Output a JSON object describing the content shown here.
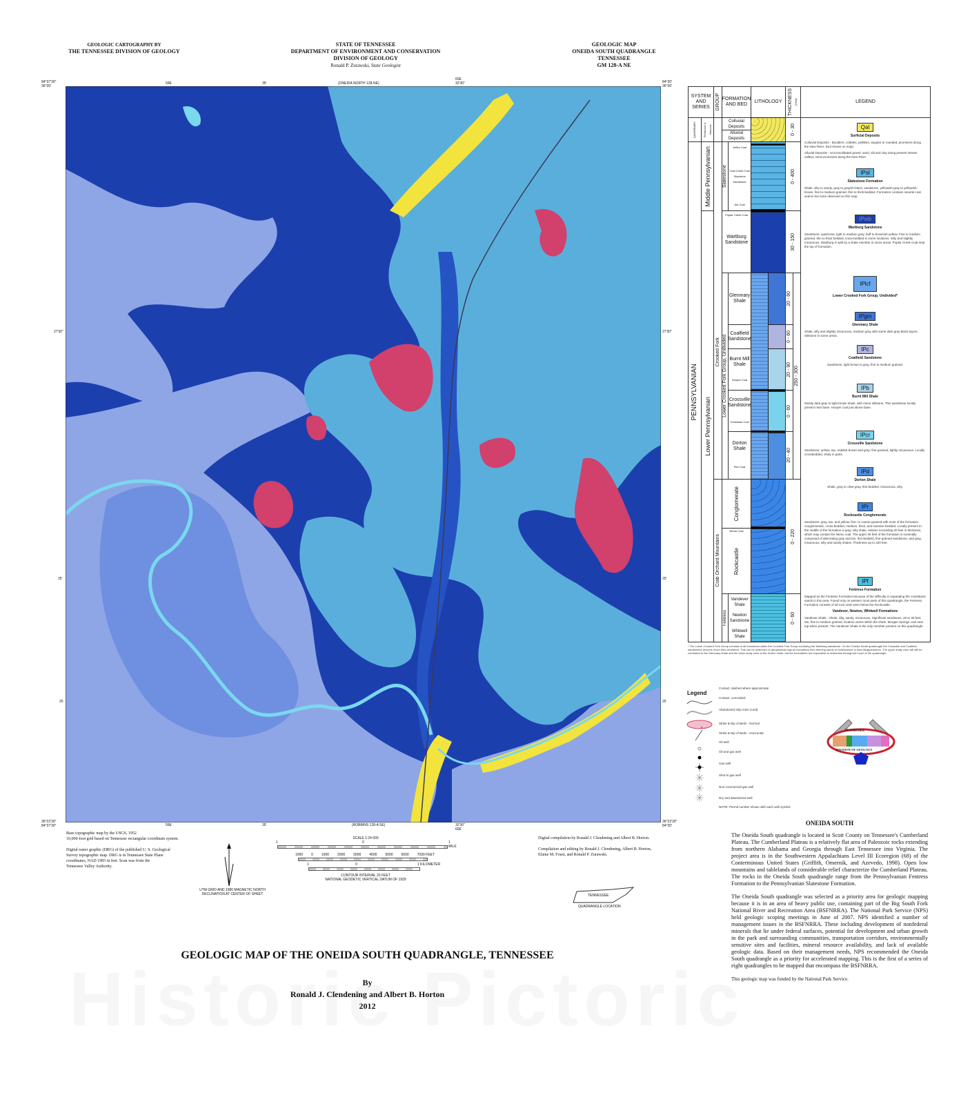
{
  "header": {
    "left": [
      "GEOLOGIC CARTOGRAPHY BY",
      "THE TENNESSEE DIVISION OF GEOLOGY"
    ],
    "center": [
      "STATE OF TENNESSEE",
      "DEPARTMENT OF ENVIRONMENT AND CONSERVATION",
      "DIVISION OF GEOLOGY"
    ],
    "center_geologist_name": "Ronald P. Zurawski,",
    "center_geologist_title": "State Geologist",
    "right": [
      "GEOLOGIC MAP",
      "ONEIDA SOUTH QUADRANGLE",
      "TENNESSEE",
      "GM 128-A NE"
    ]
  },
  "map": {
    "corner_nw": "84°37'30\"\n36°30'",
    "corner_ne": "84°30'\n36°30'",
    "corner_sw": "36°22'30\"\n84°37'30\"",
    "corner_se": "36°22'30\"\n84°30'",
    "top_labels": [
      "59E",
      "35'",
      "(ONEIDA NORTH 128-NE)",
      "60E 32'30\""
    ],
    "bottom_labels": [
      "59E",
      "35'",
      "(ROBBINS 128-A SE)",
      "32'30\" 60E"
    ],
    "side_labels": [
      "27'30\"",
      "25'",
      "25"
    ],
    "colors": {
      "wartburg": "#1c3fae",
      "slatestone": "#5aaedc",
      "fentress": "#8ea6e6",
      "crooked_fork": "#3f6fd0",
      "coal_mine": "#d2406c",
      "alluvium": "#f2e43c",
      "river": "#7ad8ee"
    }
  },
  "credits": {
    "base": [
      "Base topographic map by the USGS, 1952",
      "10,000-foot grid based on Tennessee rectangular coordinate system."
    ],
    "drg": [
      "Digital raster graphic (DRG) of the published U. S. Geological",
      "Survey topographic map. DRG is in Tennessee State Plane",
      "coordinates, NAD 1983 in feet. Scan was from the",
      "Tennessee Valley Authority."
    ],
    "compilation": "Digital compilation by Ronald J. Clendening and Albert B. Horton.",
    "editing": [
      "Compilation and editing by Ronald J. Clendening, Albert B. Horton,",
      "Elaine M. Foust, and Ronald P. Zurawski."
    ],
    "declination": [
      "UTM GRID AND 1980 MAGNETIC NORTH",
      "DECLINATION AT CENTER OF SHEET"
    ]
  },
  "scale": {
    "title": "SCALE 1:24 000",
    "mile_labels": [
      "1",
      "0",
      "1 MILE"
    ],
    "feet_labels": [
      "1000",
      "0",
      "1000",
      "2000",
      "3000",
      "4000",
      "5000",
      "6000",
      "7000 FEET"
    ],
    "km_labels": [
      "1",
      "0",
      "1 KILOMETER"
    ],
    "contour": "CONTOUR INTERVAL 20 FEET",
    "datum": "NATIONAL GEODETIC VERTICAL DATUM OF 1929"
  },
  "location": {
    "state": "TENNESSEE",
    "caption": "QUADRANGLE LOCATION"
  },
  "column": {
    "headers": {
      "system": "SYSTEM AND SERIES",
      "group": "GROUP",
      "formation": "FORMATION AND BED",
      "lithology": "LITHOLOGY",
      "thickness": "THICKNESS",
      "thickness_unit": "(Feet)",
      "legend": "LEGEND"
    },
    "systems": {
      "quaternary": "QUATERNARY",
      "pleistocene": "Pleistocene & Holocene",
      "pennsylvanian": "PENNSYLVANIAN",
      "middle": "Middle Pennsylvanian",
      "lower": "Lower Pennsylvanian"
    },
    "groups": {
      "crooked_fork": "Crooked Fork",
      "crab_orchard": "Crab Orchard Mountains",
      "slatestone": "Slatestone",
      "lower_crooked": "Lower Crooked Fork Group, Undivided",
      "fentress": "Fentress"
    },
    "formations": {
      "colluvial": "Colluvial Deposits",
      "alluvial": "Alluvial Deposits",
      "jellico": "Jellico Coal",
      "coal_creek": "Coal Creek Coal Stephens Sandstone",
      "anl": "Anl Coal",
      "poplar": "Poplar Creek Coal",
      "wartburg": "Wartburg Sandstone",
      "glenmary": "Glenmary Shale",
      "coalfield": "Coalfield Sandstone",
      "burnt_mill": "Burnt Mill Shale",
      "hooper": "Hooper Coal",
      "crossville": "Crossville Sandstone",
      "christmas": "Christmas Coal",
      "dorton": "Dorton Shale",
      "rex": "Rex Coal",
      "conglomerate": "Conglomerate",
      "nemo": "Nemo Coal",
      "rockcastle": "Rockcastle",
      "vandever": "Vandever Shale",
      "newton": "Newton Sandstone",
      "whitwell": "Whitwell Shale"
    },
    "thickness": {
      "qal": "0 - 30",
      "psl": "0 - 400",
      "pwb": "30 - 150",
      "pgm": "20 - 60",
      "pc": "0 - 60",
      "pb": "20 - 90",
      "pcf": "250 - 300",
      "pcr": "0 - 60",
      "pd": "20 - 40",
      "pr": "0 - 220",
      "pf": "0 - 60"
    },
    "legend": [
      {
        "sym": "Qal",
        "name": "Surficial Deposits",
        "text": [
          "Colluvial Deposits - Boulders, cobbles, pebbles, angular to rounded, prominent along the New River. (Not shown on map)",
          "Alluvial Deposits - Unconsolidated gravel, sand, silt and clay along present stream valleys. Most prominent along the New River."
        ],
        "color": "#f2e860"
      },
      {
        "sym": "IPsl",
        "name": "Slatestone Formation",
        "text": [
          "Shale, silty to sandy, gray to grayish-black; sandstone, yellowish-gray to yellowish-brown, fine to medium-grained, thin to thick-bedded. Formation contains several coal seams but none observed on this map."
        ],
        "color": "#5ab4e4"
      },
      {
        "sym": "IPwb",
        "name": "Wartburg Sandstone",
        "text": [
          "Sandstone, quartzose, light to medium gray, buff to brownish-yellow. Fine to medium grained, thin to thick bedded; cross-bedded in some locations. Silty and slightly micaceous. Wartburg is split by a shale member in some areas. Poplar Creek Coal near the top of formation."
        ],
        "color": "#1c3fae"
      },
      {
        "sym": "IPlcf",
        "name": "Lower Crooked Fork Group, Undivided*",
        "text": [],
        "color": "#6aa6ec"
      },
      {
        "sym": "IPgm",
        "name": "Glenmary Shale",
        "text": [
          "Shale, silty and slightly micaceous, medium gray with some dark gray-black layers. Siltstone in some areas."
        ],
        "color": "#3f76d6"
      },
      {
        "sym": "IPc",
        "name": "Coalfield Sandstone",
        "text": [
          "Sandstone, light brown to gray, fine to medium grained."
        ],
        "color": "#b0b4e0"
      },
      {
        "sym": "IPb",
        "name": "Burnt Mill Shale",
        "text": [
          "Mostly dark-gray to light-brown shale, with minor siltstone. Thin sandstone locally present near base. Hooper coal just above base."
        ],
        "color": "#a8d4ec"
      },
      {
        "sym": "IPcr",
        "name": "Crossville Sandstone",
        "text": [
          "Sandstone, yellow, tan, reddish-brown and gray; fine-grained, lightly micaceous. Locally crossbedded, shaly in parts."
        ],
        "color": "#7ad2ec"
      },
      {
        "sym": "IPd",
        "name": "Dorton Shale",
        "text": [
          "Shale, gray to olive-gray, thin-bedded, micaceous, silty."
        ],
        "color": "#4e8ee0"
      },
      {
        "sym": "IPr",
        "name": "Rockcastle Conglomerate",
        "text": [
          "Sandstone, gray, tan, and yellow, fine- to coarse-grained with most of the formation conglomeratic, cross-bedded, medium, thick, and massive bedded. Locally present in the middle of the formation is gray, silty shale, seldom exceeding 20 feet in thickness, which may contain the Nemo coal. The upper 30 feet of the formation is nominally composed of alternating gray and tan, thin-bedded, fine-grained sandstone, and gray, micaceous, silty and sandy shales. Thickness up to 220 feet."
        ],
        "color": "#3a86e6"
      },
      {
        "sym": "IPf",
        "name": "Fentress Formation",
        "text": [
          "Mapped as the Fentress Formation because of the difficulty in separating the constituent sands in this area. Found only on western most parts of this quadrangle, the Fentress Formation consists of all rock units seen below the Rockcastle."
        ],
        "subname": "Vandever, Newton, Whitwell Formations",
        "subtext": "Vandever Shale - Shale, silty, sandy, micaceous. Significant sandstone, 20 to 30 feet, tan, fine to medium grained, location varies within the shale. Morgan Springs coal near top when present. The Vandever Shale is the only member present on this quadrangle.",
        "color": "#4cc0e0"
      }
    ],
    "footnote": "* The Lower Crooked Fork Group consists of all formations within the Crooked Fork Group excluding the Wartburg sandstone. On the Oneida South quadrangle the Crossville and Coalfield sandstones become much less consistent. This can be observed on geophysical logs as everything from thinning sands to coalescence to total disappearance. The upper shaly zone will still be correlated to the Glenmary shale and the lower shaly zone to the Dorton shale, but the boundaries are impossible to determine throughout much of the quadrangle."
  },
  "symbols": {
    "title": "Legend",
    "items": [
      "Contact, dashed where approximate",
      "Contact, concealed",
      "Abandoned strip mine (coal)",
      "Strike & Dip of Beds - Normal",
      "Strike & Dip of Beds - Horizontal",
      "Oil well",
      "Oil and gas well",
      "Gas well",
      "Shut-in gas well",
      "Non-commercial gas well",
      "Dry and abandoned well",
      "NOTE: Permit number shown with each well symbol"
    ],
    "dip_value": "5"
  },
  "seal": {
    "top": "TENNESSEE",
    "bottom": "DIVISION OF GEOLOGY"
  },
  "description": {
    "heading": "ONEIDA SOUTH",
    "p1": "The Oneida South quadrangle is located in Scott County on Tennessee's Cumberland Plateau. The Cumberland Plateau is a relatively flat area of Paleozoic rocks extending from northern Alabama and Georgia through East Tennessee into Virginia. The project area is in the Southwestern Appalachians Level III Ecoregion (68) of the Conterminous United States (Griffith, Omernik, and Azevedo, 1998). Open low mountains and tablelands of considerable relief characterize the Cumberland Plateau. The rocks in the Oneida South quadrangle range from the Pennsylvanian Fentress Formation to the Pennsylvanian Slatestone Formation.",
    "p2": "The Oneida South quadrangle was selected as a priority area for geologic mapping because it is in an area of heavy public use, containing part of the Big South Fork National River and Recreation Area (BSFNRRA). The National Park Service (NPS) held geologic scoping meetings in June of 2007. NPS identified a number of management issues in the BSFNRRA. These including development of nonfederal minerals that lie under federal surfaces, potential for development and urban growth in the park and surrounding communities, transportation corridors, environmentally sensitive sites and facilities, mineral resource availability, and lack of available geologic data. Based on their management needs, NPS recommended the Oneida South quadrangle as a priority for accelerated mapping. This is the first of a series of eight quadrangles to be mapped that encompass the BSFNRRA.",
    "p3": "This geologic map was funded by the National Park Service."
  },
  "title": {
    "main": "GEOLOGIC MAP OF THE ONEIDA SOUTH QUADRANGLE, TENNESSEE",
    "by": "By",
    "authors": "Ronald J. Clendening and Albert B. Horton",
    "year": "2012"
  },
  "watermark": "Historic Pictoric"
}
